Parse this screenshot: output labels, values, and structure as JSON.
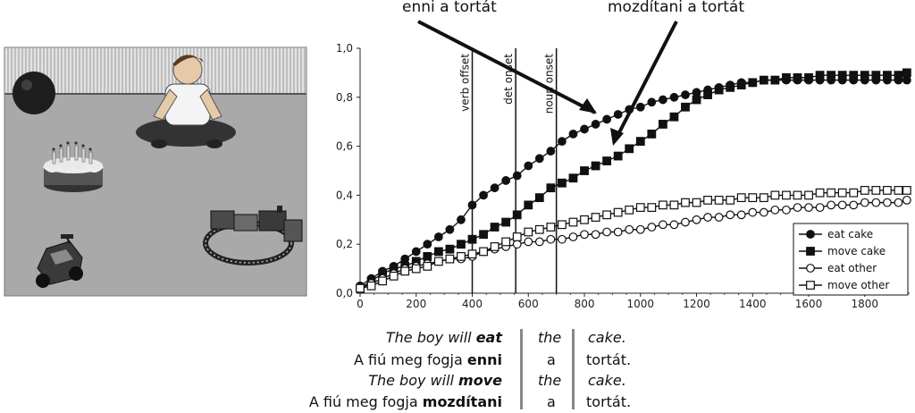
{
  "annotations": {
    "left": "enni a tortát",
    "right": "mozdítani a tortát"
  },
  "scene_icons": [
    "ball-icon",
    "boy-icon",
    "birthday-cake-icon",
    "toy-car-icon",
    "toy-train-icon"
  ],
  "chart_data": {
    "type": "line",
    "title": "",
    "xlabel": "",
    "ylabel": "",
    "xlim": [
      0,
      1960
    ],
    "ylim": [
      0,
      1.0
    ],
    "x_ticks": [
      "0",
      "200",
      "400",
      "600",
      "800",
      "1000",
      "1200",
      "1400",
      "1600",
      "1800"
    ],
    "y_ticks": [
      "0,0",
      "0,2",
      "0,4",
      "0,6",
      "0,8",
      "1,0"
    ],
    "legend_position": "bottom-right",
    "grid": false,
    "event_lines": [
      {
        "x": 400,
        "label": "verb offset"
      },
      {
        "x": 555,
        "label": "det onset"
      },
      {
        "x": 700,
        "label": "noun onset"
      }
    ],
    "series": [
      {
        "name": "eat cake",
        "marker": "filled-circle",
        "x": [
          0,
          40,
          80,
          120,
          160,
          200,
          240,
          280,
          320,
          360,
          400,
          440,
          480,
          520,
          560,
          600,
          640,
          680,
          720,
          760,
          800,
          840,
          880,
          920,
          960,
          1000,
          1040,
          1080,
          1120,
          1160,
          1200,
          1240,
          1280,
          1320,
          1360,
          1400,
          1440,
          1480,
          1520,
          1560,
          1600,
          1640,
          1680,
          1720,
          1760,
          1800,
          1840,
          1880,
          1920,
          1950
        ],
        "y": [
          0.03,
          0.06,
          0.09,
          0.11,
          0.14,
          0.17,
          0.2,
          0.23,
          0.26,
          0.3,
          0.36,
          0.4,
          0.43,
          0.46,
          0.48,
          0.52,
          0.55,
          0.58,
          0.62,
          0.65,
          0.67,
          0.69,
          0.71,
          0.73,
          0.75,
          0.76,
          0.78,
          0.79,
          0.8,
          0.81,
          0.82,
          0.83,
          0.84,
          0.85,
          0.86,
          0.86,
          0.87,
          0.87,
          0.87,
          0.87,
          0.87,
          0.87,
          0.87,
          0.87,
          0.87,
          0.87,
          0.87,
          0.87,
          0.87,
          0.87
        ]
      },
      {
        "name": "move cake",
        "marker": "filled-square",
        "x": [
          0,
          40,
          80,
          120,
          160,
          200,
          240,
          280,
          320,
          360,
          400,
          440,
          480,
          520,
          560,
          600,
          640,
          680,
          720,
          760,
          800,
          840,
          880,
          920,
          960,
          1000,
          1040,
          1080,
          1120,
          1160,
          1200,
          1240,
          1280,
          1320,
          1360,
          1400,
          1440,
          1480,
          1520,
          1560,
          1600,
          1640,
          1680,
          1720,
          1760,
          1800,
          1840,
          1880,
          1920,
          1950
        ],
        "y": [
          0.02,
          0.05,
          0.08,
          0.1,
          0.11,
          0.13,
          0.15,
          0.17,
          0.18,
          0.2,
          0.22,
          0.24,
          0.27,
          0.29,
          0.32,
          0.36,
          0.39,
          0.43,
          0.45,
          0.47,
          0.5,
          0.52,
          0.54,
          0.56,
          0.59,
          0.62,
          0.65,
          0.69,
          0.72,
          0.76,
          0.79,
          0.81,
          0.83,
          0.84,
          0.85,
          0.86,
          0.87,
          0.87,
          0.88,
          0.88,
          0.88,
          0.89,
          0.89,
          0.89,
          0.89,
          0.89,
          0.89,
          0.89,
          0.89,
          0.9
        ]
      },
      {
        "name": "eat other",
        "marker": "open-circle",
        "x": [
          0,
          40,
          80,
          120,
          160,
          200,
          240,
          280,
          320,
          360,
          400,
          440,
          480,
          520,
          560,
          600,
          640,
          680,
          720,
          760,
          800,
          840,
          880,
          920,
          960,
          1000,
          1040,
          1080,
          1120,
          1160,
          1200,
          1240,
          1280,
          1320,
          1360,
          1400,
          1440,
          1480,
          1520,
          1560,
          1600,
          1640,
          1680,
          1720,
          1760,
          1800,
          1840,
          1880,
          1920,
          1950
        ],
        "y": [
          0.02,
          0.04,
          0.06,
          0.08,
          0.1,
          0.11,
          0.12,
          0.13,
          0.14,
          0.14,
          0.15,
          0.17,
          0.18,
          0.19,
          0.2,
          0.21,
          0.21,
          0.22,
          0.22,
          0.23,
          0.24,
          0.24,
          0.25,
          0.25,
          0.26,
          0.26,
          0.27,
          0.28,
          0.28,
          0.29,
          0.3,
          0.31,
          0.31,
          0.32,
          0.32,
          0.33,
          0.33,
          0.34,
          0.34,
          0.35,
          0.35,
          0.35,
          0.36,
          0.36,
          0.36,
          0.37,
          0.37,
          0.37,
          0.37,
          0.38
        ]
      },
      {
        "name": "move other",
        "marker": "open-square",
        "x": [
          0,
          40,
          80,
          120,
          160,
          200,
          240,
          280,
          320,
          360,
          400,
          440,
          480,
          520,
          560,
          600,
          640,
          680,
          720,
          760,
          800,
          840,
          880,
          920,
          960,
          1000,
          1040,
          1080,
          1120,
          1160,
          1200,
          1240,
          1280,
          1320,
          1360,
          1400,
          1440,
          1480,
          1520,
          1560,
          1600,
          1640,
          1680,
          1720,
          1760,
          1800,
          1840,
          1880,
          1920,
          1950
        ],
        "y": [
          0.02,
          0.03,
          0.05,
          0.07,
          0.09,
          0.1,
          0.11,
          0.13,
          0.14,
          0.15,
          0.16,
          0.17,
          0.19,
          0.21,
          0.23,
          0.25,
          0.26,
          0.27,
          0.28,
          0.29,
          0.3,
          0.31,
          0.32,
          0.33,
          0.34,
          0.35,
          0.35,
          0.36,
          0.36,
          0.37,
          0.37,
          0.38,
          0.38,
          0.38,
          0.39,
          0.39,
          0.39,
          0.4,
          0.4,
          0.4,
          0.4,
          0.41,
          0.41,
          0.41,
          0.41,
          0.42,
          0.42,
          0.42,
          0.42,
          0.42
        ]
      }
    ]
  },
  "sentences": [
    {
      "prefix": "The boy will ",
      "verb": "eat",
      "det": "the",
      "noun": "cake.",
      "italic": true
    },
    {
      "prefix": "A fiú meg fogja ",
      "verb": "enni",
      "det": "a",
      "noun": "tortát.",
      "italic": false
    },
    {
      "prefix": "The boy will ",
      "verb": "move",
      "det": "the",
      "noun": "cake.",
      "italic": true
    },
    {
      "prefix": "A fiú meg fogja ",
      "verb": "mozdítani",
      "det": "a",
      "noun": "tortát.",
      "italic": false
    }
  ]
}
